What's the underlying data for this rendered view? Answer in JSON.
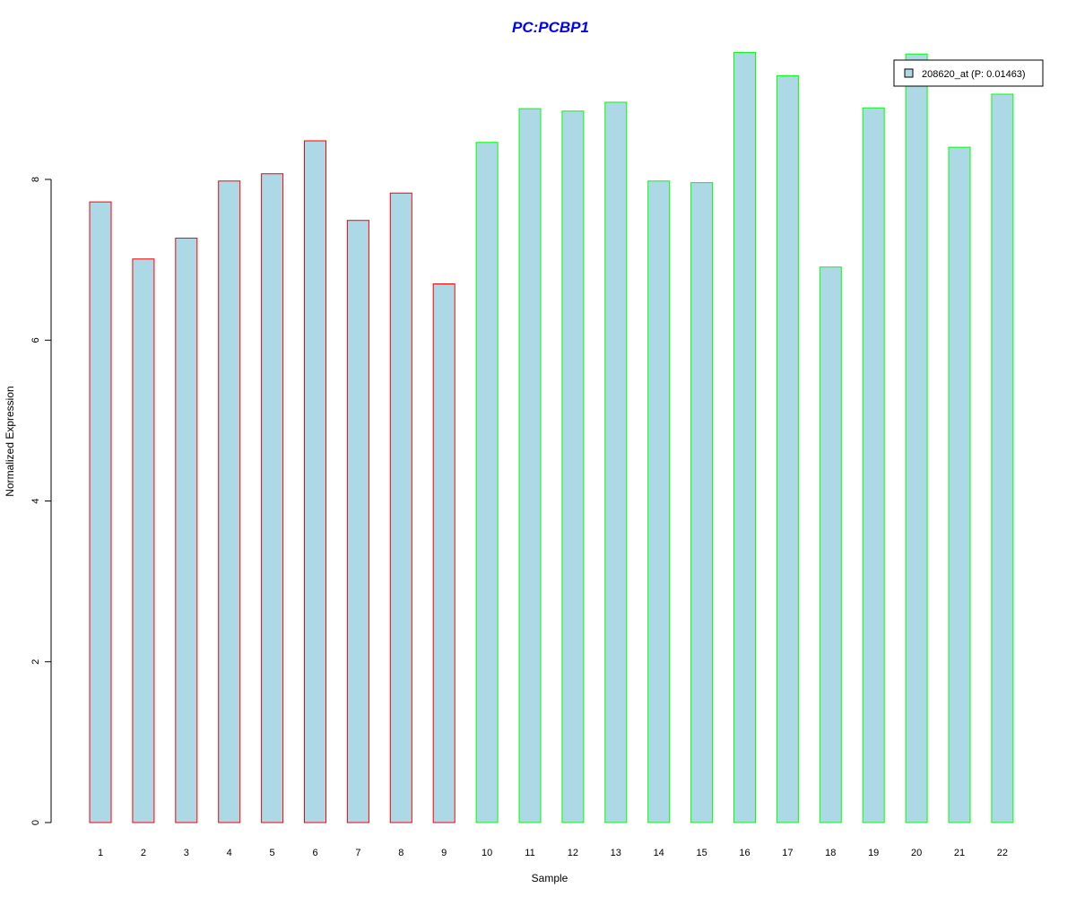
{
  "chart_data": {
    "type": "bar",
    "title": "PC:PCBP1",
    "xlabel": "Sample",
    "ylabel": "Normalized Expression",
    "categories": [
      "1",
      "2",
      "3",
      "4",
      "5",
      "6",
      "7",
      "8",
      "9",
      "10",
      "11",
      "12",
      "13",
      "14",
      "15",
      "16",
      "17",
      "18",
      "19",
      "20",
      "21",
      "22"
    ],
    "series": [
      {
        "name": "208620_at (P: 0.01463)",
        "values": [
          7.72,
          7.01,
          7.27,
          7.98,
          8.07,
          8.48,
          7.49,
          7.83,
          6.7,
          8.46,
          8.88,
          8.85,
          8.96,
          7.98,
          7.96,
          9.58,
          9.29,
          6.91,
          8.89,
          9.56,
          8.4,
          9.06
        ]
      }
    ],
    "groups": [
      {
        "samples": [
          "1",
          "2",
          "3",
          "4",
          "5",
          "6",
          "7",
          "8",
          "9"
        ],
        "border_color": "#ff0000"
      },
      {
        "samples": [
          "10",
          "11",
          "12",
          "13",
          "14",
          "15",
          "16",
          "17",
          "18",
          "19",
          "20",
          "21",
          "22"
        ],
        "border_color": "#00ff00"
      }
    ],
    "yticks": [
      0,
      2,
      4,
      6,
      8
    ],
    "ylim": [
      0,
      9.58
    ],
    "grid": false,
    "legend_position": "top-right",
    "colors": {
      "bar_fill": "#add8e6",
      "title": "#0000ff",
      "group1_border": "#ff0000",
      "group2_border": "#00ff00"
    }
  }
}
